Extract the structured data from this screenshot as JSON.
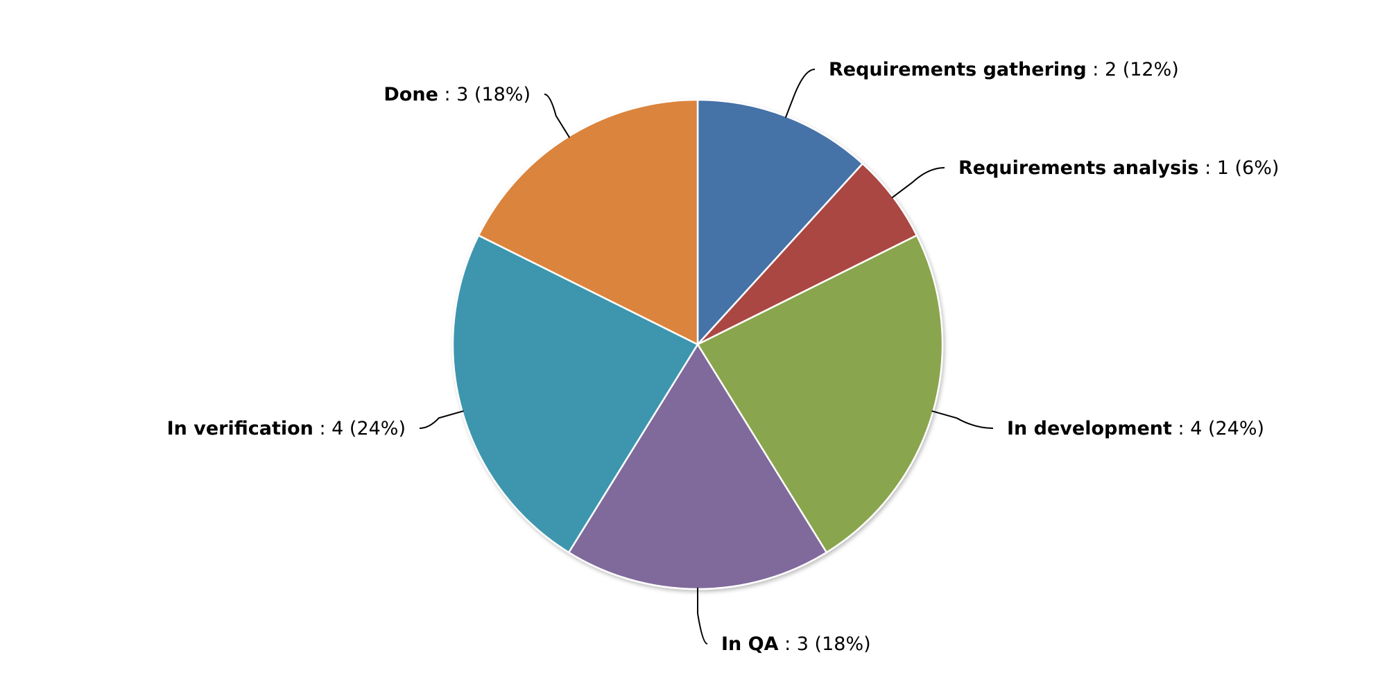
{
  "chart_data": {
    "type": "pie",
    "title": "",
    "start_angle_deg": 0,
    "direction": "clockwise",
    "slices": [
      {
        "name": "Requirements gathering",
        "value": 2,
        "percent": "12%",
        "value_text": " : 2 (12%)",
        "color": "#4572a7"
      },
      {
        "name": "Requirements analysis",
        "value": 1,
        "percent": "6%",
        "value_text": " : 1 (6%)",
        "color": "#aa4643"
      },
      {
        "name": "In development",
        "value": 4,
        "percent": "24%",
        "value_text": " : 4 (24%)",
        "color": "#89a54e"
      },
      {
        "name": "In QA",
        "value": 3,
        "percent": "18%",
        "value_text": " : 3 (18%)",
        "color": "#80699b"
      },
      {
        "name": "In verification",
        "value": 4,
        "percent": "24%",
        "value_text": " : 4 (24%)",
        "color": "#3d96ae"
      },
      {
        "name": "Done",
        "value": 3,
        "percent": "18%",
        "value_text": " : 3 (18%)",
        "color": "#db843d"
      }
    ]
  }
}
